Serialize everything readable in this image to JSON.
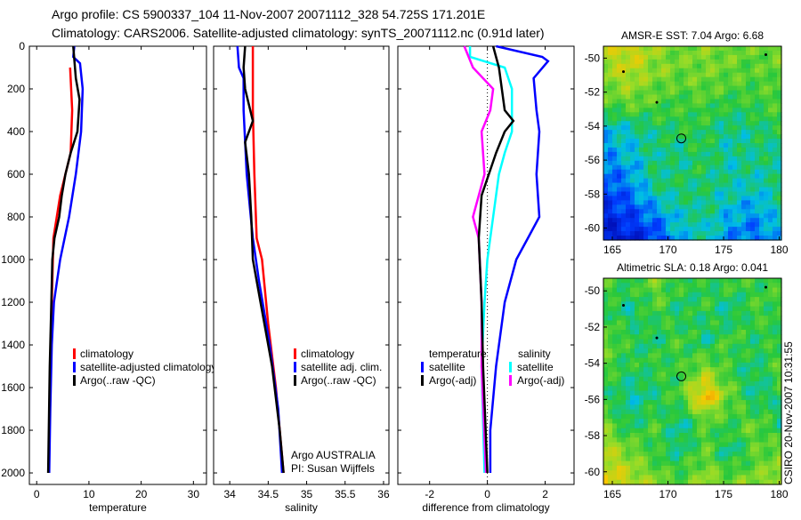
{
  "title_line1": "Argo profile: CS 5900337_104 11-Nov-2007 20071112_328 54.725S 171.201E",
  "title_line2": "Climatology: CARS2006. Satellite-adjusted climatology: synTS_20071112.nc (0.91d later)",
  "argo_label": "Argo AUSTRALIA",
  "pi_label": "PI: Susan Wijffels",
  "footer_stamp": "CSIRO 20-Nov-2007 10:31:55",
  "chart_data": [
    {
      "type": "line",
      "id": "temperature",
      "xlabel": "temperature",
      "ylabel": "",
      "xlim": [
        -1.4,
        32.5
      ],
      "ylim": [
        0,
        2054
      ],
      "y_reversed": true,
      "xticks": [
        0,
        10,
        20,
        30
      ],
      "yticks": [
        0,
        200,
        400,
        600,
        800,
        1000,
        1200,
        1400,
        1600,
        1800,
        2000
      ],
      "legend": {
        "placement": "bottom-right",
        "entries": [
          "climatology",
          "satellite-adjusted climatology",
          "Argo(..raw -QC)"
        ]
      },
      "series": [
        {
          "name": "climatology",
          "color": "#ff0000",
          "depth": [
            100,
            300,
            500,
            700,
            900,
            1200,
            1600,
            2000
          ],
          "values": [
            6.4,
            6.8,
            6.5,
            4.5,
            3.2,
            2.9,
            2.5,
            2.3
          ]
        },
        {
          "name": "satellite-adjusted climatology",
          "color": "#0000ff",
          "depth": [
            0,
            50,
            80,
            200,
            400,
            600,
            800,
            1000,
            1200,
            1400,
            1700,
            2000
          ],
          "values": [
            7.2,
            7.0,
            8.3,
            8.8,
            8.5,
            7.5,
            6.2,
            4.5,
            3.3,
            2.9,
            2.6,
            2.4
          ]
        },
        {
          "name": "Argo(..raw -QC)",
          "color": "#000000",
          "depth": [
            0,
            150,
            250,
            400,
            500,
            600,
            700,
            800,
            900,
            1000,
            1200,
            1500,
            2000
          ],
          "values": [
            7.0,
            7.5,
            8.2,
            7.8,
            6.5,
            5.5,
            4.8,
            4.3,
            3.4,
            3.0,
            2.8,
            2.5,
            2.2
          ]
        }
      ]
    },
    {
      "type": "line",
      "id": "salinity",
      "xlabel": "salinity",
      "ylabel": "",
      "xlim": [
        33.79,
        36.07
      ],
      "ylim": [
        0,
        2054
      ],
      "y_reversed": true,
      "xticks": [
        34,
        34.5,
        35,
        35.5,
        36
      ],
      "yticks": [],
      "legend": {
        "placement": "bottom-right",
        "entries": [
          "climatology",
          "satellite adj. clim.",
          "Argo(..raw -QC)"
        ]
      },
      "series": [
        {
          "name": "climatology",
          "color": "#ff0000",
          "depth": [
            0,
            300,
            600,
            900,
            1000,
            1300,
            1600,
            2000
          ],
          "values": [
            34.3,
            34.3,
            34.32,
            34.35,
            34.42,
            34.5,
            34.6,
            34.7
          ]
        },
        {
          "name": "satellite adj. clim.",
          "color": "#0000ff",
          "depth": [
            0,
            100,
            150,
            300,
            600,
            900,
            1100,
            1400,
            1700,
            2000
          ],
          "values": [
            34.1,
            34.12,
            34.18,
            34.18,
            34.22,
            34.3,
            34.38,
            34.52,
            34.63,
            34.68
          ]
        },
        {
          "name": "Argo(..raw -QC)",
          "color": "#000000",
          "depth": [
            0,
            100,
            200,
            350,
            450,
            600,
            800,
            1000,
            1200,
            1500,
            1800,
            2000
          ],
          "values": [
            34.2,
            34.18,
            34.2,
            34.3,
            34.2,
            34.25,
            34.28,
            34.3,
            34.4,
            34.55,
            34.65,
            34.7
          ]
        }
      ]
    },
    {
      "type": "line",
      "id": "difference",
      "xlabel": "difference from climatology",
      "ylabel": "",
      "xlim": [
        -3.1,
        3.0
      ],
      "ylim": [
        0,
        2054
      ],
      "y_reversed": true,
      "xticks": [
        -2,
        0,
        2
      ],
      "yticks": [],
      "legend": {
        "placement": "bottom",
        "headers": [
          "temperature",
          "salinity"
        ],
        "entries": [
          "satellite",
          "Argo(-adj)",
          "satellite",
          "Argo(-adj)"
        ]
      },
      "series": [
        {
          "name": "temperature satellite",
          "color": "#0000ff",
          "depth": [
            0,
            50,
            70,
            150,
            300,
            400,
            600,
            800,
            900,
            1000,
            1200,
            1500,
            1800,
            2000
          ],
          "values": [
            0.3,
            1.9,
            2.1,
            1.6,
            1.7,
            1.8,
            1.7,
            1.8,
            1.4,
            1.0,
            0.6,
            0.3,
            0.1,
            0.1
          ]
        },
        {
          "name": "temperature Argo(-adj)",
          "color": "#000000",
          "depth": [
            0,
            100,
            300,
            350,
            400,
            500,
            700,
            900,
            1200,
            1500,
            2000
          ],
          "values": [
            0.2,
            0.4,
            0.6,
            0.9,
            0.6,
            0.3,
            -0.2,
            -0.3,
            -0.2,
            -0.15,
            0
          ]
        },
        {
          "name": "salinity satellite",
          "color": "#00ffff",
          "depth": [
            0,
            50,
            100,
            200,
            400,
            500,
            600,
            800,
            1000,
            1200,
            1500,
            2000
          ],
          "values": [
            -0.6,
            -0.6,
            0.6,
            0.85,
            0.85,
            0.6,
            0.4,
            0.2,
            0.0,
            -0.1,
            -0.2,
            -0.1
          ]
        },
        {
          "name": "salinity Argo(-adj)",
          "color": "#ff00ff",
          "depth": [
            0,
            100,
            200,
            300,
            400,
            600,
            800,
            900,
            1200,
            1500,
            2000
          ],
          "values": [
            -0.8,
            -0.5,
            0.2,
            0.1,
            -0.2,
            -0.1,
            -0.5,
            -0.3,
            -0.2,
            -0.2,
            -0.05
          ]
        }
      ]
    },
    {
      "type": "heatmap",
      "id": "sst_map",
      "title": "AMSR-E SST: 7.04 Argo: 6.68",
      "xlim": [
        164.2,
        180.2
      ],
      "ylim": [
        -60.7,
        -49.3
      ],
      "xticks": [
        165,
        170,
        175,
        180
      ],
      "yticks": [
        -50,
        -52,
        -54,
        -56,
        -58,
        -60
      ],
      "argo_position": [
        171.201,
        -54.725
      ],
      "values": [
        [
          0.7,
          0.75,
          0.65,
          0.6,
          0.62,
          0.6,
          0.58,
          0.6
        ],
        [
          0.65,
          0.7,
          0.62,
          0.58,
          0.6,
          0.58,
          0.55,
          0.58
        ],
        [
          0.55,
          0.6,
          0.55,
          0.52,
          0.55,
          0.5,
          0.52,
          0.55
        ],
        [
          0.35,
          0.4,
          0.45,
          0.5,
          0.48,
          0.42,
          0.45,
          0.48
        ],
        [
          0.3,
          0.35,
          0.45,
          0.42,
          0.5,
          0.4,
          0.45,
          0.42
        ],
        [
          0.22,
          0.28,
          0.45,
          0.48,
          0.45,
          0.42,
          0.4,
          0.45
        ],
        [
          0.15,
          0.2,
          0.3,
          0.4,
          0.45,
          0.35,
          0.3,
          0.4
        ],
        [
          0.08,
          0.12,
          0.18,
          0.35,
          0.4,
          0.3,
          0.25,
          0.35
        ]
      ]
    },
    {
      "type": "heatmap",
      "id": "sla_map",
      "title": "Altimetric SLA: 0.18 Argo: 0.041",
      "xlim": [
        164.2,
        180.2
      ],
      "ylim": [
        -60.7,
        -49.3
      ],
      "xticks": [
        165,
        170,
        175,
        180
      ],
      "yticks": [
        -50,
        -52,
        -54,
        -56,
        -58,
        -60
      ],
      "argo_position": [
        171.201,
        -54.725
      ],
      "values": [
        [
          0.55,
          0.5,
          0.6,
          0.52,
          0.48,
          0.55,
          0.5,
          0.55
        ],
        [
          0.5,
          0.42,
          0.55,
          0.45,
          0.52,
          0.4,
          0.55,
          0.5
        ],
        [
          0.58,
          0.5,
          0.45,
          0.55,
          0.42,
          0.55,
          0.48,
          0.52
        ],
        [
          0.55,
          0.48,
          0.52,
          0.5,
          0.62,
          0.5,
          0.45,
          0.55
        ],
        [
          0.5,
          0.4,
          0.45,
          0.55,
          0.85,
          0.6,
          0.42,
          0.5
        ],
        [
          0.6,
          0.45,
          0.55,
          0.4,
          0.55,
          0.5,
          0.6,
          0.45
        ],
        [
          0.7,
          0.62,
          0.5,
          0.45,
          0.58,
          0.42,
          0.55,
          0.6
        ],
        [
          0.75,
          0.72,
          0.62,
          0.55,
          0.65,
          0.6,
          0.62,
          0.68
        ]
      ]
    }
  ]
}
